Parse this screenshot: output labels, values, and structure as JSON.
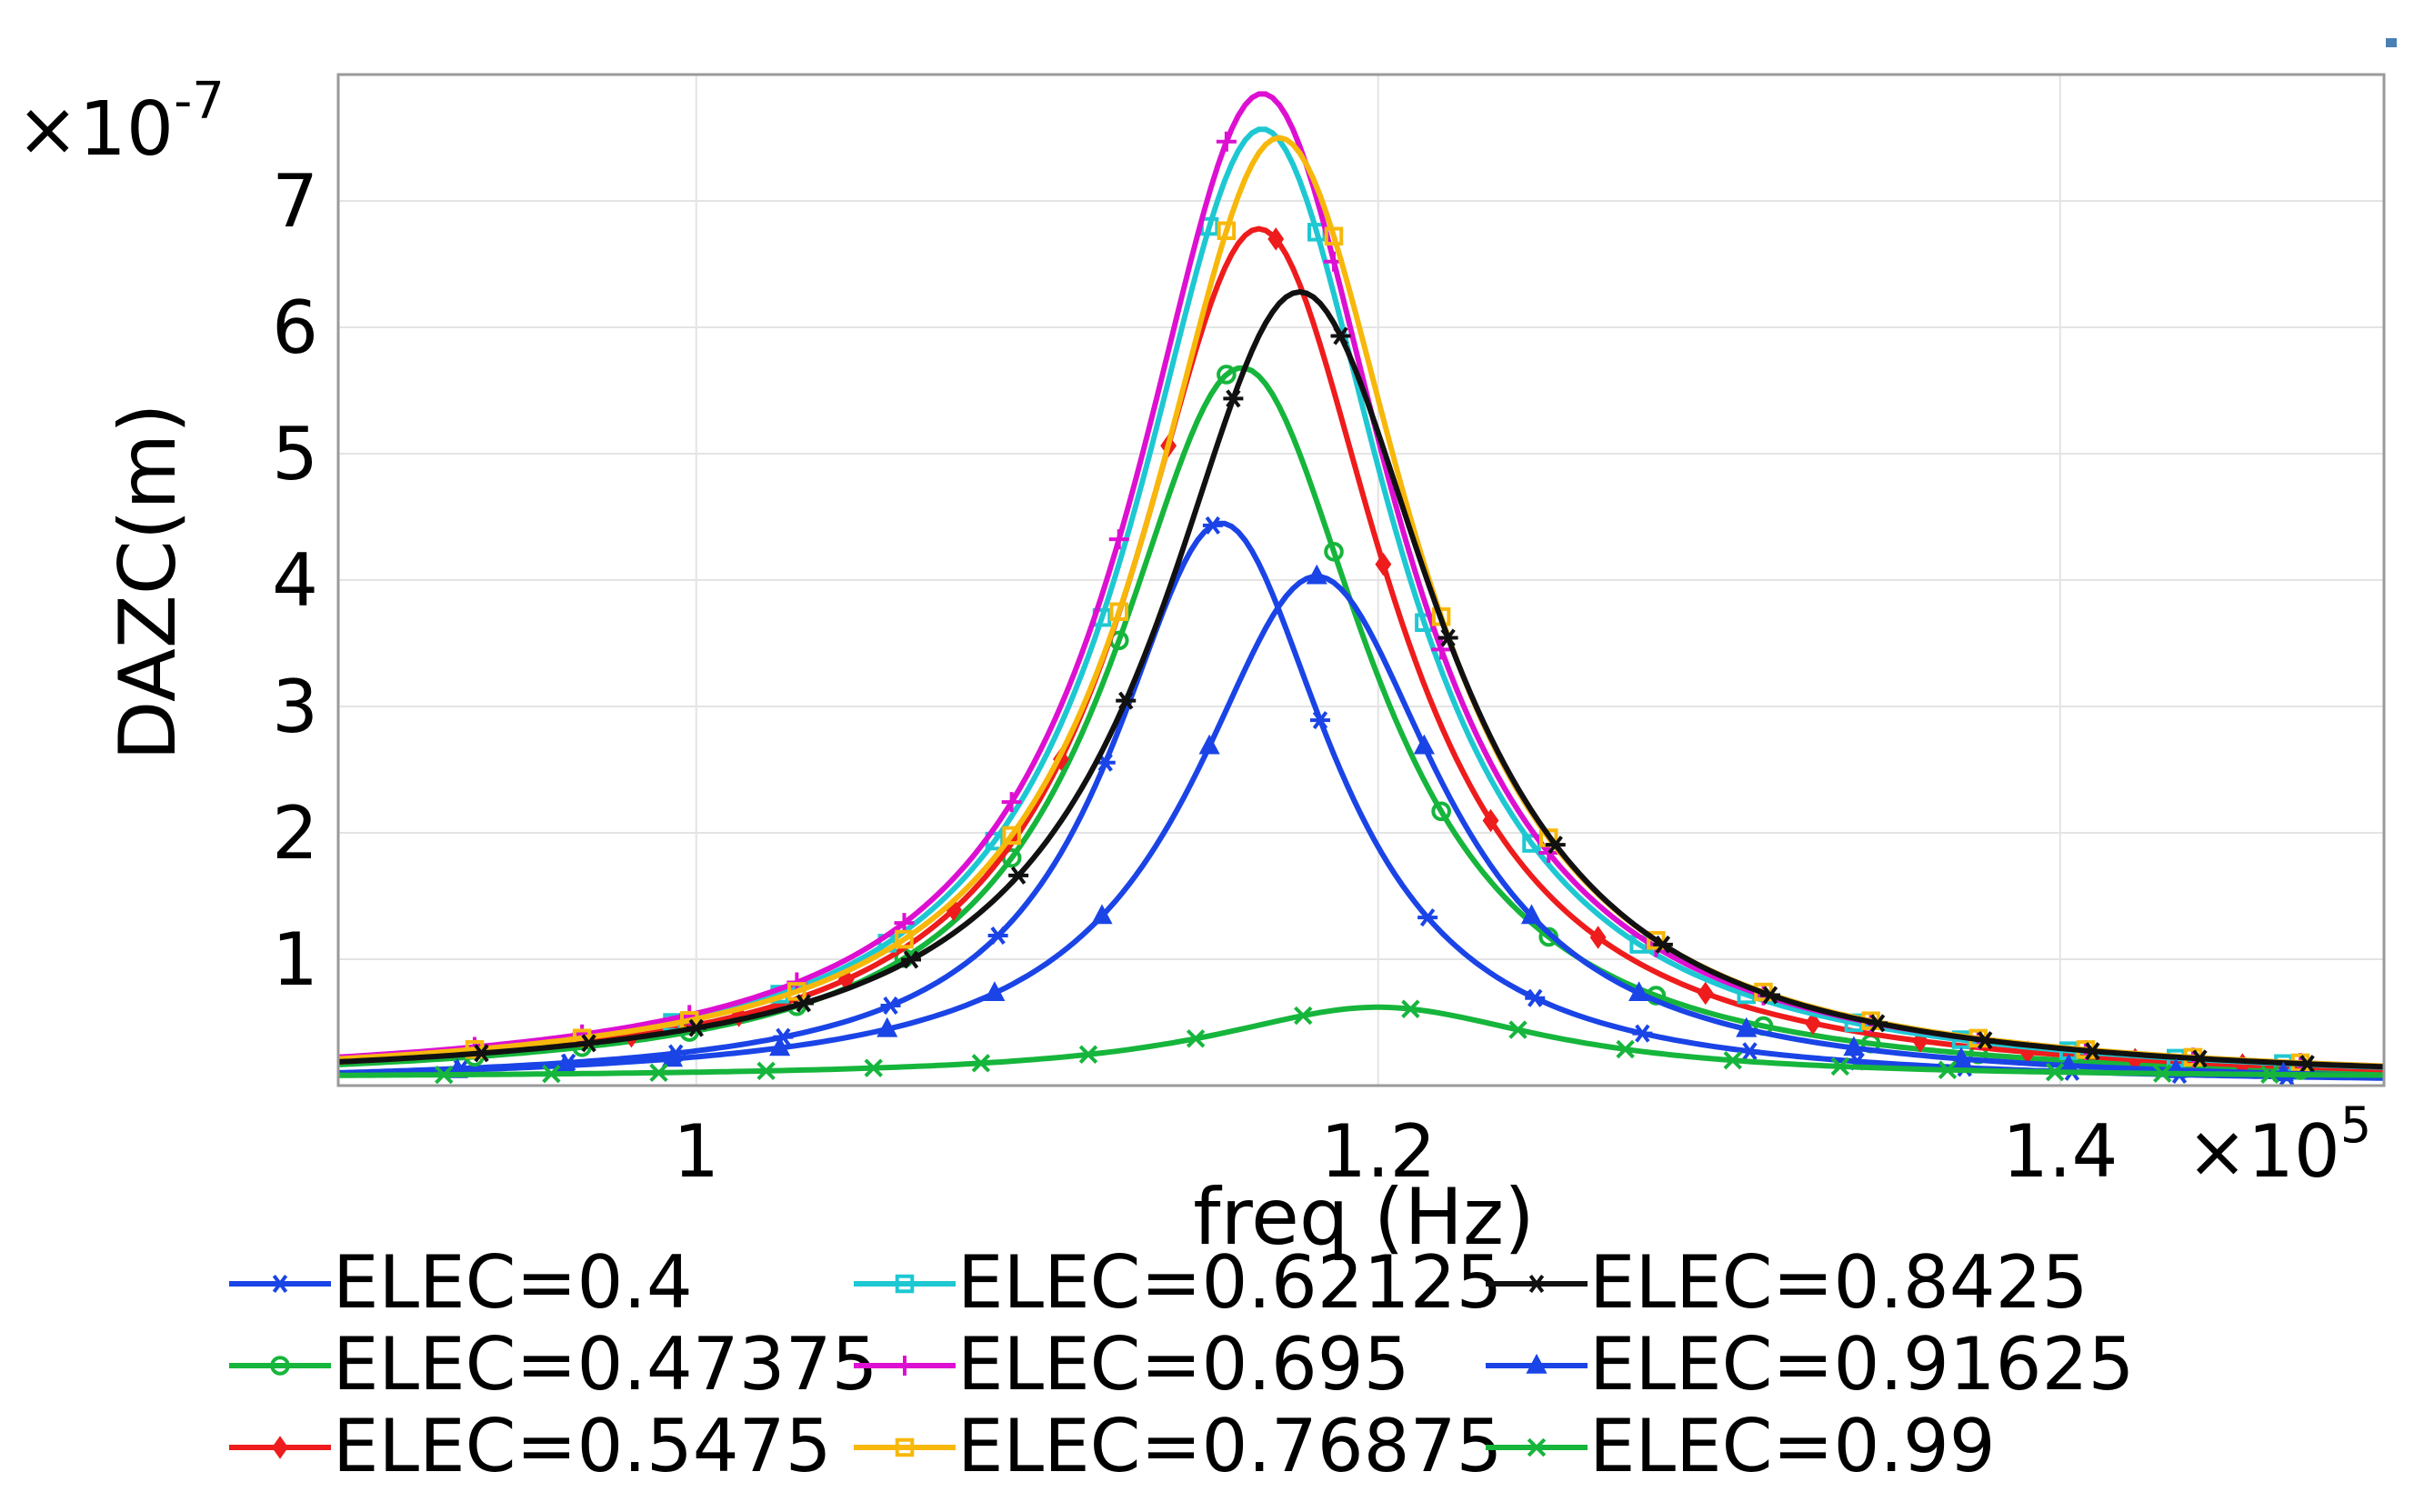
{
  "chart_data": {
    "type": "line",
    "xlabel": "freq (Hz)",
    "ylabel": "DAZC(m)",
    "x_multiplier": {
      "base": "×10",
      "exp": "5"
    },
    "y_multiplier": {
      "base": "×10",
      "exp": "-7"
    },
    "xlim": [
      0.895,
      1.495
    ],
    "ylim": [
      0.0,
      8.0
    ],
    "x_ticks": [
      {
        "value": 1.0,
        "label": "1"
      },
      {
        "value": 1.2,
        "label": "1.2"
      },
      {
        "value": 1.4,
        "label": "1.4"
      }
    ],
    "y_ticks": [
      {
        "value": 1,
        "label": "1"
      },
      {
        "value": 2,
        "label": "2"
      },
      {
        "value": 3,
        "label": "3"
      },
      {
        "value": 4,
        "label": "4"
      },
      {
        "value": 5,
        "label": "5"
      },
      {
        "value": 6,
        "label": "6"
      },
      {
        "value": 7,
        "label": "7"
      }
    ],
    "grid": true,
    "legend_position": "bottom",
    "series": [
      {
        "name": "ELEC=0.4",
        "color": "#1a44e6",
        "marker": "star",
        "peak_x": 1.154,
        "peak_y": 4.45,
        "width": 0.0395,
        "marker_x0": 0.931,
        "marker_dx": 0.0315
      },
      {
        "name": "ELEC=0.47375",
        "color": "#16b53c",
        "marker": "circle",
        "peak_x": 1.16,
        "peak_y": 5.68,
        "width": 0.046,
        "marker_x0": 0.935,
        "marker_dx": 0.0315
      },
      {
        "name": "ELEC=0.5475",
        "color": "#ee1c1c",
        "marker": "diamond",
        "peak_x": 1.165,
        "peak_y": 6.78,
        "width": 0.0455,
        "marker_x0": 0.981,
        "marker_dx": 0.0315
      },
      {
        "name": "ELEC=0.62125",
        "color": "#1ec8d2",
        "marker": "square",
        "peak_x": 1.166,
        "peak_y": 7.57,
        "width": 0.046,
        "marker_x0": 0.993,
        "marker_dx": 0.0315
      },
      {
        "name": "ELEC=0.695",
        "color": "#dd10d2",
        "marker": "plus",
        "peak_x": 1.166,
        "peak_y": 7.85,
        "width": 0.0465,
        "marker_x0": 0.935,
        "marker_dx": 0.0315
      },
      {
        "name": "ELEC=0.76875",
        "color": "#f7b80b",
        "marker": "square",
        "peak_x": 1.171,
        "peak_y": 7.5,
        "width": 0.047,
        "marker_x0": 0.935,
        "marker_dx": 0.0315
      },
      {
        "name": "ELEC=0.8425",
        "color": "#111111",
        "marker": "star",
        "peak_x": 1.177,
        "peak_y": 6.28,
        "width": 0.0495,
        "marker_x0": 0.937,
        "marker_dx": 0.0315
      },
      {
        "name": "ELEC=0.91625",
        "color": "#1a44e6",
        "marker": "triangle",
        "peak_x": 1.182,
        "peak_y": 4.03,
        "width": 0.0445,
        "marker_x0": 0.93,
        "marker_dx": 0.0315
      },
      {
        "name": "ELEC=0.99",
        "color": "#16b53c",
        "marker": "x",
        "peak_x": 1.2,
        "peak_y": 0.62,
        "width": 0.06,
        "baseline": 0.06,
        "marker_x0": 0.926,
        "marker_dx": 0.0315
      }
    ]
  }
}
